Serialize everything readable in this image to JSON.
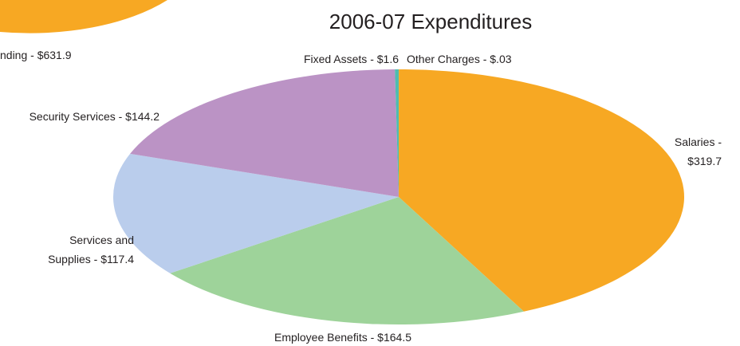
{
  "chart_data": {
    "type": "pie",
    "title": "2006-07 Expenditures",
    "categories": [
      "Other Charges",
      "Salaries",
      "Employee Benefits",
      "Services and Supplies",
      "Security Services",
      "Fixed Assets"
    ],
    "values": [
      0.03,
      319.7,
      164.5,
      117.4,
      144.2,
      1.6
    ],
    "value_labels": [
      [
        "Other Charges - $.03"
      ],
      [
        "Salaries -",
        "$319.7"
      ],
      [
        "Employee Benefits - $164.5"
      ],
      [
        "Services and",
        "Supplies - $117.4"
      ],
      [
        "Security Services - $144.2"
      ],
      [
        "Fixed Assets - $1.6"
      ]
    ],
    "colors": [
      "#f0643c",
      "#f7a823",
      "#9ed39a",
      "#bacdec",
      "#bb93c5",
      "#4fbcb0"
    ],
    "cropped_label": "nding - $631.9"
  }
}
